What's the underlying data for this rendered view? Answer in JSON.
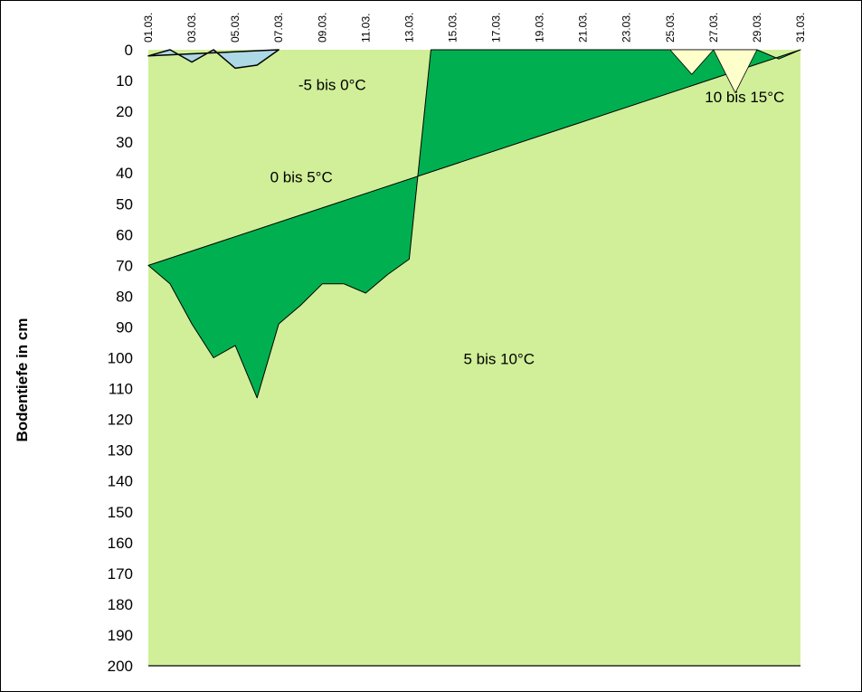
{
  "chart_data": {
    "type": "area",
    "ylabel": "Bodentiefe in cm",
    "y_ticks": [
      0,
      10,
      20,
      30,
      40,
      50,
      60,
      70,
      80,
      90,
      100,
      110,
      120,
      130,
      140,
      150,
      160,
      170,
      180,
      190,
      200
    ],
    "ylim": [
      0,
      200
    ],
    "y_inverted": true,
    "xlim": [
      1,
      31
    ],
    "x_ticks": [
      {
        "day": 1,
        "label": "01.03."
      },
      {
        "day": 3,
        "label": "03.03."
      },
      {
        "day": 5,
        "label": "05.03."
      },
      {
        "day": 7,
        "label": "07.03."
      },
      {
        "day": 9,
        "label": "09.03."
      },
      {
        "day": 11,
        "label": "11.03."
      },
      {
        "day": 13,
        "label": "13.03."
      },
      {
        "day": 15,
        "label": "15.03."
      },
      {
        "day": 17,
        "label": "17.03."
      },
      {
        "day": 19,
        "label": "19.03."
      },
      {
        "day": 21,
        "label": "21.03."
      },
      {
        "day": 23,
        "label": "23.03."
      },
      {
        "day": 25,
        "label": "25.03."
      },
      {
        "day": 27,
        "label": "27.03."
      },
      {
        "day": 29,
        "label": "29.03."
      },
      {
        "day": 31,
        "label": "31.03."
      }
    ],
    "colors": {
      "neg5_0": "#add8e6",
      "0_5": "#00b050",
      "5_10": "#d0ef98",
      "10_15": "#ffffcc"
    },
    "zones": {
      "neg5_0": {
        "label": "-5 bis 0°C",
        "label_at": {
          "day": 7.9,
          "depth": 13
        },
        "points": [
          [
            1,
            2
          ],
          [
            2,
            0
          ],
          [
            3,
            4
          ],
          [
            4,
            0
          ],
          [
            5,
            6
          ],
          [
            6,
            5
          ],
          [
            7,
            0
          ]
        ]
      },
      "0_5": {
        "label": "0 bis 5°C",
        "label_at": {
          "day": 6.6,
          "depth": 43
        },
        "points": [
          [
            1,
            70
          ],
          [
            2,
            76
          ],
          [
            3,
            89
          ],
          [
            4,
            100
          ],
          [
            5,
            96
          ],
          [
            6,
            113
          ],
          [
            7,
            89
          ],
          [
            8,
            83
          ],
          [
            9,
            76
          ],
          [
            10,
            76
          ],
          [
            11,
            79
          ],
          [
            12,
            73
          ],
          [
            13,
            68
          ],
          [
            14,
            0
          ],
          [
            29,
            0
          ],
          [
            30,
            3
          ],
          [
            31,
            0
          ]
        ]
      },
      "5_10": {
        "label": "5 bis 10°C",
        "label_at": {
          "day": 15.5,
          "depth": 102
        }
      },
      "10_15": {
        "label": "10 bis 15°C",
        "label_at": {
          "day": 26.6,
          "depth": 17
        },
        "points": [
          [
            25,
            0
          ],
          [
            26,
            8
          ],
          [
            27,
            0
          ],
          [
            28,
            14
          ],
          [
            29,
            0
          ]
        ]
      }
    }
  }
}
